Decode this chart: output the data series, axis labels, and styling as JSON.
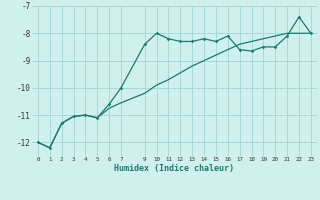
{
  "xlabel": "Humidex (Indice chaleur)",
  "bg_color": "#cff0ec",
  "grid_color": "#a8d8d8",
  "line_color": "#1e7a6e",
  "line1_x": [
    0,
    1,
    2,
    3,
    4,
    5,
    6,
    7,
    9,
    10,
    11,
    12,
    13,
    14,
    15,
    16,
    17,
    18,
    19,
    20,
    21,
    22,
    23
  ],
  "line1_y": [
    -12.0,
    -12.2,
    -11.3,
    -11.05,
    -11.0,
    -11.1,
    -10.6,
    -10.0,
    -8.4,
    -8.0,
    -8.2,
    -8.3,
    -8.3,
    -8.2,
    -8.3,
    -8.1,
    -8.6,
    -8.65,
    -8.5,
    -8.5,
    -8.1,
    -7.4,
    -8.0
  ],
  "line2_x": [
    0,
    1,
    2,
    3,
    4,
    5,
    6,
    7,
    9,
    10,
    11,
    12,
    13,
    14,
    15,
    16,
    17,
    18,
    19,
    20,
    21,
    22,
    23
  ],
  "line2_y": [
    -12.0,
    -12.2,
    -11.3,
    -11.05,
    -11.0,
    -11.1,
    -10.75,
    -10.55,
    -10.2,
    -9.9,
    -9.7,
    -9.45,
    -9.2,
    -9.0,
    -8.8,
    -8.6,
    -8.4,
    -8.3,
    -8.2,
    -8.1,
    -8.0,
    -8.0,
    -8.0
  ],
  "ylim": [
    -12.5,
    -7.0
  ],
  "xlim": [
    -0.5,
    23.5
  ],
  "yticks": [
    -12,
    -11,
    -10,
    -9,
    -8,
    -7
  ],
  "xticks": [
    0,
    1,
    2,
    3,
    4,
    5,
    6,
    7,
    9,
    10,
    11,
    12,
    13,
    14,
    15,
    16,
    17,
    18,
    19,
    20,
    21,
    22,
    23
  ]
}
